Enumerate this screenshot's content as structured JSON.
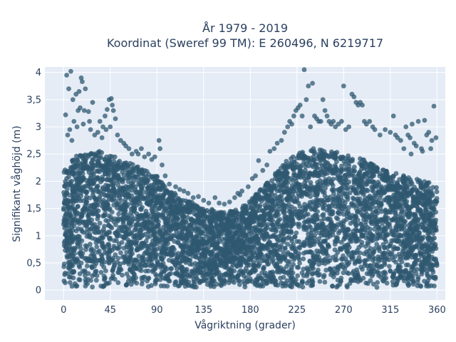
{
  "chart_data": {
    "type": "scatter",
    "title": "År 1979 - 2019",
    "subtitle": "Koordinat (Sweref 99 TM): E 260496, N 6219717",
    "xlabel": "Vågriktning (grader)",
    "ylabel": "Signifikant våghöjd (m)",
    "xlim": [
      -18,
      368
    ],
    "ylim": [
      -0.18,
      4.1
    ],
    "grid": true,
    "legend": "none",
    "x_ticks": [
      0,
      45,
      90,
      135,
      180,
      225,
      270,
      315,
      360
    ],
    "x_tick_labels": [
      "0",
      "45",
      "90",
      "135",
      "180",
      "225",
      "270",
      "315",
      "360"
    ],
    "y_ticks": [
      0,
      0.5,
      1,
      1.5,
      2,
      2.5,
      3,
      3.5,
      4
    ],
    "y_tick_labels": [
      "0",
      "0,5",
      "1",
      "1,5",
      "2",
      "2,5",
      "3",
      "3,5",
      "4"
    ],
    "envelope": {
      "x": [
        0,
        10,
        20,
        30,
        40,
        50,
        60,
        70,
        80,
        90,
        100,
        110,
        120,
        130,
        140,
        150,
        160,
        170,
        180,
        190,
        200,
        210,
        220,
        230,
        240,
        250,
        260,
        270,
        280,
        290,
        300,
        310,
        320,
        330,
        340,
        350,
        360
      ],
      "upper": [
        2.2,
        2.45,
        2.5,
        2.6,
        2.55,
        2.45,
        2.35,
        2.3,
        2.2,
        2.1,
        1.85,
        1.75,
        1.65,
        1.55,
        1.5,
        1.45,
        1.45,
        1.5,
        1.65,
        1.85,
        2.05,
        2.3,
        2.45,
        2.55,
        2.6,
        2.6,
        2.55,
        2.5,
        2.45,
        2.4,
        2.3,
        2.2,
        2.15,
        2.1,
        2.05,
        2.0,
        1.9
      ],
      "lower": 0.05
    },
    "series": [
      {
        "color": "#2f5870",
        "points": [
          [
            3,
            3.95
          ],
          [
            7,
            4.02
          ],
          [
            2,
            3.22
          ],
          [
            5,
            3.7
          ],
          [
            9,
            3.5
          ],
          [
            12,
            3.6
          ],
          [
            15,
            3.65
          ],
          [
            17,
            3.9
          ],
          [
            18,
            3.83
          ],
          [
            21,
            3.7
          ],
          [
            14,
            3.3
          ],
          [
            16,
            3.35
          ],
          [
            20,
            3.3
          ],
          [
            24,
            3.28
          ],
          [
            28,
            3.45
          ],
          [
            10,
            3.1
          ],
          [
            6,
            2.95
          ],
          [
            4,
            2.85
          ],
          [
            8,
            2.75
          ],
          [
            13,
            3.0
          ],
          [
            19,
            3.05
          ],
          [
            25,
            3.1
          ],
          [
            26,
            2.95
          ],
          [
            30,
            2.85
          ],
          [
            33,
            2.9
          ],
          [
            35,
            3.1
          ],
          [
            38,
            3.0
          ],
          [
            40,
            3.2
          ],
          [
            42,
            3.32
          ],
          [
            44,
            3.5
          ],
          [
            46,
            3.52
          ],
          [
            47,
            3.4
          ],
          [
            48,
            3.3
          ],
          [
            50,
            3.15
          ],
          [
            45,
            3.0
          ],
          [
            41,
            2.95
          ],
          [
            37,
            2.8
          ],
          [
            52,
            2.85
          ],
          [
            55,
            2.75
          ],
          [
            58,
            2.7
          ],
          [
            60,
            2.65
          ],
          [
            63,
            2.6
          ],
          [
            66,
            2.5
          ],
          [
            70,
            2.55
          ],
          [
            72,
            2.5
          ],
          [
            75,
            2.6
          ],
          [
            78,
            2.45
          ],
          [
            82,
            2.5
          ],
          [
            85,
            2.4
          ],
          [
            88,
            2.45
          ],
          [
            92,
            2.75
          ],
          [
            93,
            2.6
          ],
          [
            95,
            2.3
          ],
          [
            98,
            2.1
          ],
          [
            102,
            1.95
          ],
          [
            108,
            1.9
          ],
          [
            112,
            1.85
          ],
          [
            116,
            1.82
          ],
          [
            120,
            1.78
          ],
          [
            125,
            1.7
          ],
          [
            130,
            1.72
          ],
          [
            135,
            1.65
          ],
          [
            140,
            1.6
          ],
          [
            146,
            1.7
          ],
          [
            150,
            1.6
          ],
          [
            155,
            1.58
          ],
          [
            160,
            1.62
          ],
          [
            165,
            1.7
          ],
          [
            168,
            1.78
          ],
          [
            170,
            1.75
          ],
          [
            172,
            1.82
          ],
          [
            178,
            1.9
          ],
          [
            182,
            2.05
          ],
          [
            185,
            2.1
          ],
          [
            188,
            2.38
          ],
          [
            192,
            2.2
          ],
          [
            196,
            2.3
          ],
          [
            199,
            2.55
          ],
          [
            203,
            2.6
          ],
          [
            206,
            2.7
          ],
          [
            210,
            2.75
          ],
          [
            213,
            2.9
          ],
          [
            216,
            3.0
          ],
          [
            218,
            3.1
          ],
          [
            220,
            3.05
          ],
          [
            222,
            3.2
          ],
          [
            224,
            3.3
          ],
          [
            226,
            3.35
          ],
          [
            228,
            3.4
          ],
          [
            230,
            3.2
          ],
          [
            232,
            4.05
          ],
          [
            234,
            3.5
          ],
          [
            236,
            3.75
          ],
          [
            238,
            3.0
          ],
          [
            240,
            3.8
          ],
          [
            242,
            3.2
          ],
          [
            244,
            3.15
          ],
          [
            246,
            3.1
          ],
          [
            248,
            3.1
          ],
          [
            250,
            3.5
          ],
          [
            252,
            3.3
          ],
          [
            254,
            3.2
          ],
          [
            256,
            3.1
          ],
          [
            258,
            3.05
          ],
          [
            260,
            3.1
          ],
          [
            262,
            3.0
          ],
          [
            265,
            3.05
          ],
          [
            268,
            3.1
          ],
          [
            270,
            3.75
          ],
          [
            272,
            2.95
          ],
          [
            275,
            3.0
          ],
          [
            278,
            3.6
          ],
          [
            280,
            3.55
          ],
          [
            282,
            3.45
          ],
          [
            284,
            3.4
          ],
          [
            286,
            3.45
          ],
          [
            288,
            3.4
          ],
          [
            290,
            3.1
          ],
          [
            292,
            3.05
          ],
          [
            295,
            3.1
          ],
          [
            298,
            3.0
          ],
          [
            300,
            2.95
          ],
          [
            305,
            2.85
          ],
          [
            310,
            2.95
          ],
          [
            315,
            2.9
          ],
          [
            318,
            3.2
          ],
          [
            320,
            2.85
          ],
          [
            322,
            2.8
          ],
          [
            325,
            2.75
          ],
          [
            328,
            2.6
          ],
          [
            330,
            3.0
          ],
          [
            332,
            2.85
          ],
          [
            334,
            2.8
          ],
          [
            336,
            3.05
          ],
          [
            338,
            2.7
          ],
          [
            340,
            2.65
          ],
          [
            342,
            3.1
          ],
          [
            345,
            2.6
          ],
          [
            348,
            3.12
          ],
          [
            350,
            2.85
          ],
          [
            352,
            2.9
          ],
          [
            355,
            2.75
          ],
          [
            357,
            3.38
          ],
          [
            359,
            2.8
          ],
          [
            354,
            2.6
          ],
          [
            346,
            2.55
          ],
          [
            335,
            2.5
          ]
        ]
      }
    ]
  }
}
